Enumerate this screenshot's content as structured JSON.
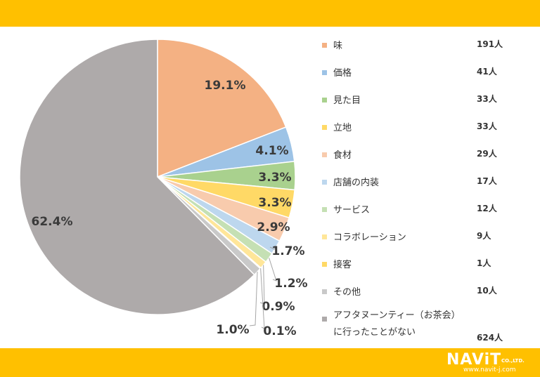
{
  "brand_color": "#ffc000",
  "chart_data": {
    "type": "pie",
    "start_angle": "12 o'clock",
    "direction": "clockwise",
    "slices": [
      {
        "label": "味",
        "count_label": "191人",
        "value": 191,
        "percent_label": "19.1%",
        "color": "#f4b183"
      },
      {
        "label": "価格",
        "count_label": "41人",
        "value": 41,
        "percent_label": "4.1%",
        "color": "#9dc3e6"
      },
      {
        "label": "見た目",
        "count_label": "33人",
        "value": 33,
        "percent_label": "3.3%",
        "color": "#a9d18e"
      },
      {
        "label": "立地",
        "count_label": "33人",
        "value": 33,
        "percent_label": "3.3%",
        "color": "#ffd966"
      },
      {
        "label": "食材",
        "count_label": "29人",
        "value": 29,
        "percent_label": "2.9%",
        "color": "#f8cbad"
      },
      {
        "label": "店舗の内装",
        "count_label": "17人",
        "value": 17,
        "percent_label": "1.7%",
        "color": "#bdd7ee"
      },
      {
        "label": "サービス",
        "count_label": "12人",
        "value": 12,
        "percent_label": "1.2%",
        "color": "#c5e0b4"
      },
      {
        "label": "コラボレーション",
        "count_label": "9人",
        "value": 9,
        "percent_label": "0.9%",
        "color": "#ffe699"
      },
      {
        "label": "接客",
        "count_label": "1人",
        "value": 1,
        "percent_label": "0.1%",
        "color": "#ffd966"
      },
      {
        "label": "その他",
        "count_label": "10人",
        "value": 10,
        "percent_label": "1.0%",
        "color": "#c9c9c9"
      },
      {
        "label": "アフタヌーンティー（お茶会）に行ったことがない",
        "label_lines": [
          "アフタヌーンティー（お茶会）",
          "に行ったことがない"
        ],
        "count_label": "624人",
        "value": 624,
        "percent_label": "62.4%",
        "color": "#aeaaaa"
      }
    ]
  },
  "logo": {
    "name": "NAViT",
    "suffix": "CO.,LTD.",
    "url": "www.navit-j.com"
  }
}
